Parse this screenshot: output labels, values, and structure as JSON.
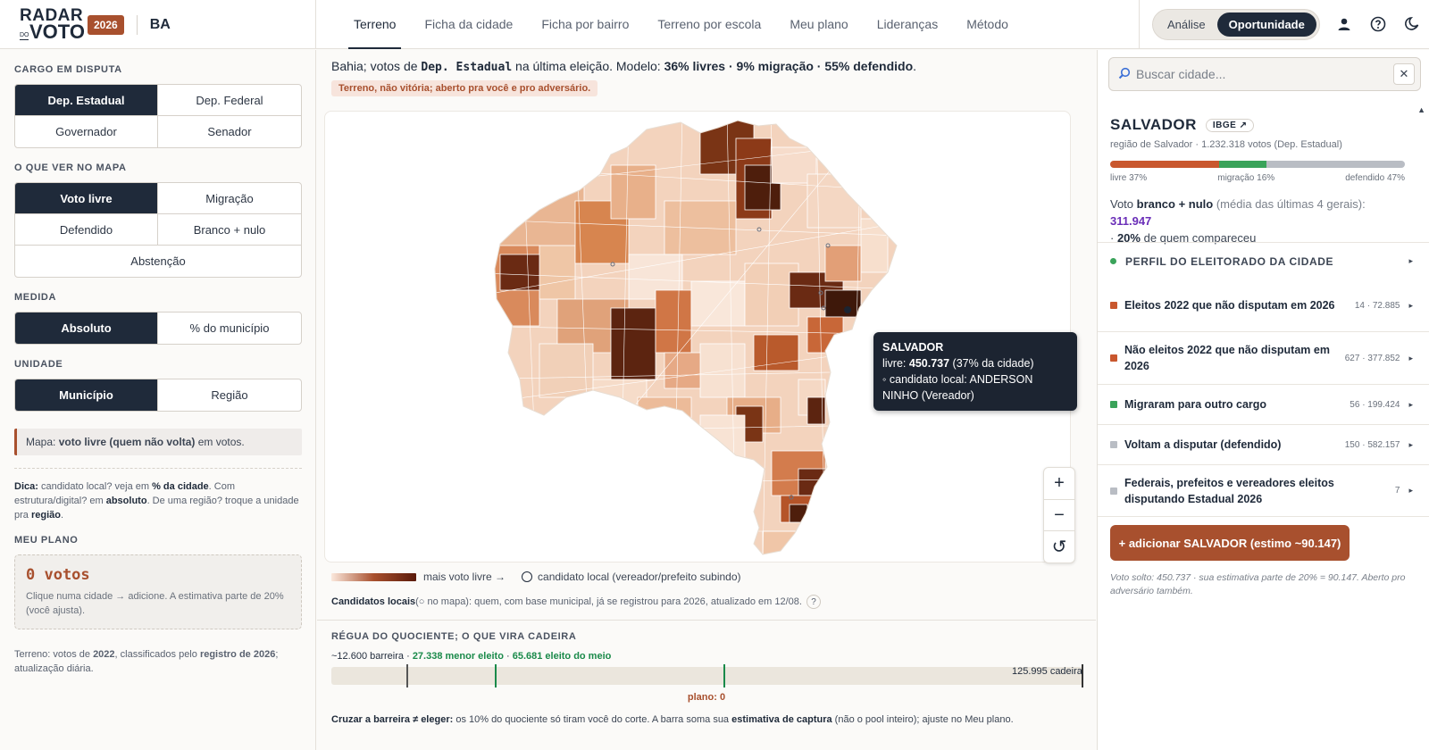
{
  "app": {
    "logo_line1": "RADAR",
    "logo_do": "DO",
    "logo_line2": "VOTO",
    "year": "2026",
    "state": "BA"
  },
  "nav": {
    "tabs": [
      "Terreno",
      "Ficha da cidade",
      "Ficha por bairro",
      "Terreno por escola",
      "Meu plano",
      "Lideranças",
      "Método"
    ],
    "active": "Terreno"
  },
  "mode": {
    "analise": "Análise",
    "oportunidade": "Oportunidade",
    "active": "Oportunidade"
  },
  "header_icons": [
    "user-icon",
    "help-icon",
    "moon-icon"
  ],
  "left": {
    "cargo_title": "CARGO EM DISPUTA",
    "cargo_options": [
      "Dep. Estadual",
      "Dep. Federal",
      "Governador",
      "Senador"
    ],
    "cargo_selected": "Dep. Estadual",
    "ver_title": "O QUE VER NO MAPA",
    "ver_options": [
      "Voto livre",
      "Migração",
      "Defendido",
      "Branco + nulo",
      "Abstenção"
    ],
    "ver_selected": "Voto livre",
    "medida_title": "MEDIDA",
    "medida_options": [
      "Absoluto",
      "% do município"
    ],
    "medida_selected": "Absoluto",
    "unidade_title": "UNIDADE",
    "unidade_options": [
      "Município",
      "Região"
    ],
    "unidade_selected": "Município",
    "mapnote_prefix": "Mapa: ",
    "mapnote_bold": "voto livre (quem não volta)",
    "mapnote_suffix": " em votos.",
    "tip": {
      "t1": "Dica:",
      "t2": " candidato local? veja em ",
      "t3": "% da cidade",
      "t4": ". Com estrutura/digital? em ",
      "t5": "absoluto",
      "t6": ". De uma região? troque a unidade pra ",
      "t7": "região",
      "t8": "."
    },
    "plano_title": "MEU PLANO",
    "plano_votes": "0 votos",
    "plano_hint": "Clique numa cidade → adicione. A estimativa parte de 20% (você ajusta).",
    "footer": {
      "f1": "Terreno: votos de ",
      "f2": "2022",
      "f3": ", classificados pelo ",
      "f4": "registro de 2026",
      "f5": "; atualização diária."
    }
  },
  "center": {
    "summary": {
      "s1": "Bahia; votos de ",
      "s2": "Dep. Estadual",
      "s3": " na última eleição. Modelo: ",
      "s4": "36% livres · 9% migração · 55% defendido",
      "s5": "."
    },
    "warning": "Terreno, não vitória; aberto pra você e pro adversário.",
    "tooltip": {
      "city": "SALVADOR",
      "livre_prefix": "livre: ",
      "livre_value": "450.737",
      "livre_suffix": " (37% da cidade)",
      "local": "◦ candidato local: ANDERSON NINHO (Vereador)"
    },
    "zoom": {
      "in": "+",
      "out": "−",
      "reset": "↺"
    },
    "legend": {
      "gradient_label": "mais voto livre →",
      "circle_label": "candidato local (vereador/prefeito subindo)"
    },
    "cands": {
      "c1": "Candidatos locais",
      "c2": " (○ no mapa): quem, com base municipal, já se registrou para 2026, atualizado em 12/08.",
      "help": "?"
    },
    "ruler": {
      "title": "RÉGUA DO QUOCIENTE; O QUE VIRA CADEIRA",
      "barreira": "~12.600 barreira · ",
      "menor": "27.338 menor eleito",
      "dot": " · ",
      "meio": "65.681 eleito do meio",
      "cadeira": "125.995 cadeira",
      "max": 125995,
      "marks": [
        {
          "value": 12600,
          "color": "#555555"
        },
        {
          "value": 27338,
          "color": "#1a8a4a"
        },
        {
          "value": 65681,
          "color": "#1a8a4a"
        },
        {
          "value": 125995,
          "color": "#333333"
        }
      ],
      "plano": "plano: 0",
      "n1": "Cruzar a barreira ≠ eleger:",
      "n2": " os 10% do quociente só tiram você do corte. A barra soma sua ",
      "n3": "estimativa de captura",
      "n4": " (não o pool inteiro); ajuste no Meu plano."
    }
  },
  "right": {
    "search_placeholder": "Buscar cidade...",
    "clear": "✕",
    "city": "SALVADOR",
    "ibge": "IBGE ↗",
    "city_sub": "região de Salvador · 1.232.318 votos (Dep. Estadual)",
    "shares": [
      {
        "label": "livre 37%",
        "value": 37,
        "color": "#c9572e"
      },
      {
        "label": "migração 16%",
        "value": 16,
        "color": "#3aa35a"
      },
      {
        "label": "defendido 47%",
        "value": 47,
        "color": "#b9bdc4"
      }
    ],
    "branco": {
      "b1": "Voto ",
      "b2": "branco + nulo",
      "b3": " (média das últimas 4 gerais): ",
      "b4": "311.947",
      "b5": " · ",
      "b6": "20%",
      "b7": " de quem compareceu"
    },
    "perfil_title": "PERFIL DO ELEITORADO DA CIDADE",
    "perfil_dot_color": "#3aa35a",
    "rows": [
      {
        "label": "Eleitos 2022 que não disputam em 2026",
        "count": "14 · 72.885",
        "color": "#c9572e"
      },
      {
        "label": "Não eleitos 2022 que não disputam em 2026",
        "count": "627 · 377.852",
        "color": "#c9572e"
      },
      {
        "label": "Migraram para outro cargo",
        "count": "56 · 199.424",
        "color": "#3aa35a"
      },
      {
        "label": "Voltam a disputar (defendido)",
        "count": "150 · 582.157",
        "color": "#b9bdc4"
      },
      {
        "label": "Federais, prefeitos e vereadores eleitos disputando Estadual 2026",
        "count": "7",
        "color": "#b9bdc4"
      }
    ],
    "add_button": "+ adicionar SALVADOR (estimo ~90.147)",
    "voto_solto": "Voto solto: 450.737 · sua estimativa parte de 20% = 90.147. Aberto pro adversário também."
  }
}
